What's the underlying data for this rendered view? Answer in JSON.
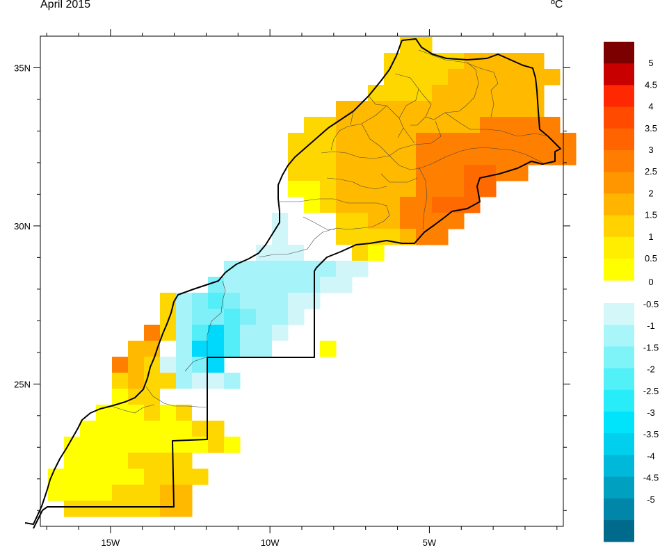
{
  "title": "April 2015",
  "unit": "ºC",
  "map": {
    "lon_range": [
      -17.2,
      -0.8
    ],
    "lat_range": [
      20.5,
      36.0
    ],
    "x_labels": [
      "15W",
      "10W",
      "5W"
    ],
    "x_label_lons": [
      -15,
      -10,
      -5
    ],
    "y_labels": [
      "35N",
      "30N",
      "25N"
    ],
    "y_label_lats": [
      35,
      30,
      25
    ],
    "colors": {
      "c0.5": "#ffff00",
      "c1": "#ffee00",
      "c1.5": "#ffd700",
      "c2": "#ffba00",
      "c2.5": "#ff9f00",
      "c3": "#ff8000",
      "c3.5": "#ff6a00",
      "c4": "#ff5000",
      "blank": "#ffffff",
      "n0.5": "#d0f6fa",
      "n1": "#a6f4f9",
      "n1.5": "#7ff0f7",
      "n2": "#54eef8",
      "n2.5": "#2ae8fa",
      "n3": "#00d8fc"
    }
  },
  "colorbar": {
    "positive": [
      {
        "label": "5",
        "color": "#7d0000"
      },
      {
        "label": "4.5",
        "color": "#c80000"
      },
      {
        "label": "4",
        "color": "#ff2800"
      },
      {
        "label": "3.5",
        "color": "#ff4a00"
      },
      {
        "label": "3",
        "color": "#ff6400"
      },
      {
        "label": "2.5",
        "color": "#ff7d00"
      },
      {
        "label": "2",
        "color": "#ff9600"
      },
      {
        "label": "1.5",
        "color": "#ffb400"
      },
      {
        "label": "1",
        "color": "#ffd200"
      },
      {
        "label": "0.5",
        "color": "#ffee00"
      },
      {
        "label": "",
        "color": "#ffff00"
      }
    ],
    "zero_label": "0",
    "negative": [
      {
        "label": "-0.5",
        "color": "#d4f8fa"
      },
      {
        "label": "-1",
        "color": "#a8f6f9"
      },
      {
        "label": "-1.5",
        "color": "#7ef3f8"
      },
      {
        "label": "-2",
        "color": "#52f0f7"
      },
      {
        "label": "-2.5",
        "color": "#28ecf8"
      },
      {
        "label": "-3",
        "color": "#00e4fb"
      },
      {
        "label": "-3.5",
        "color": "#00cfee"
      },
      {
        "label": "-4",
        "color": "#00b8da"
      },
      {
        "label": "-4.5",
        "color": "#00a0c0"
      },
      {
        "label": "-5",
        "color": "#0086a8"
      },
      {
        "label": "",
        "color": "#006a8c"
      }
    ]
  }
}
